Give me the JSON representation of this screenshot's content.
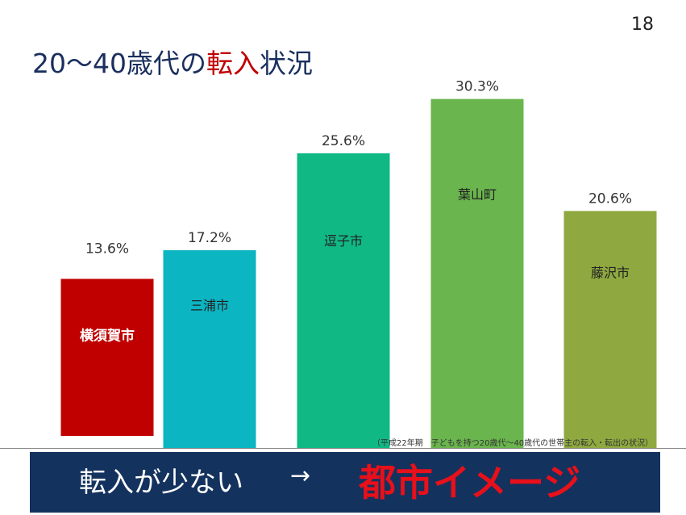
{
  "page": {
    "number": "18"
  },
  "title": {
    "before": "20〜40歳代の",
    "accent": "転入",
    "after": "状況"
  },
  "source_note": "（平成22年期　子どもを持つ20歳代〜40歳代の世帯主の転入・転出の状況）",
  "banner": {
    "text": "転入が少ない",
    "arrow": "→",
    "emphasis": "都市イメージ"
  },
  "colors": {
    "title": "#1a2f5e",
    "accent": "#c00000",
    "banner_bg": "#14325e",
    "banner_emphasis": "#e8101a"
  },
  "chart_data": {
    "type": "bar",
    "title": "",
    "xlabel": "",
    "ylabel": "",
    "ylim": [
      0,
      33
    ],
    "grid": false,
    "legend": "none",
    "categories": [
      "横須賀市",
      "三浦市",
      "逗子市",
      "葉山町",
      "藤沢市"
    ],
    "values": [
      13.6,
      17.2,
      25.6,
      30.3,
      20.6
    ],
    "value_labels": [
      "13.6%",
      "17.2%",
      "25.6%",
      "30.3%",
      "20.6%"
    ],
    "colors": [
      "#c00000",
      "#0bb5c2",
      "#10b884",
      "#6ab54e",
      "#8fa940"
    ]
  }
}
